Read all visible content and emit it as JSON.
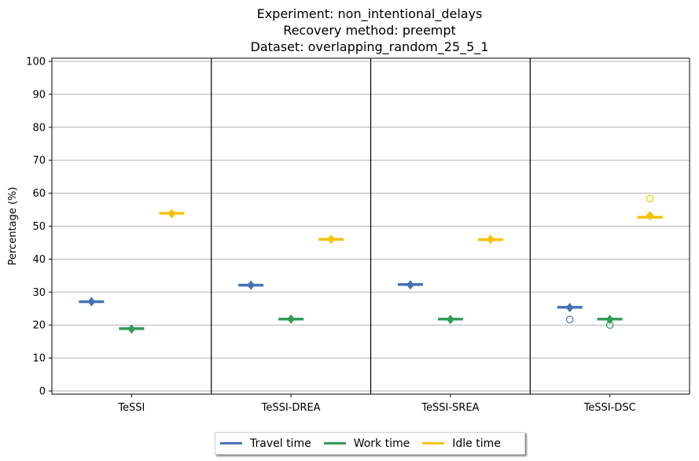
{
  "chart_data": {
    "type": "scatter",
    "title_lines": [
      "Experiment: non_intentional_delays",
      "Recovery method: preempt",
      "Dataset: overlapping_random_25_5_1"
    ],
    "xlabel": "",
    "ylabel": "Percentage (%)",
    "ylim": [
      0,
      100
    ],
    "yticks": [
      0,
      10,
      20,
      30,
      40,
      50,
      60,
      70,
      80,
      90,
      100
    ],
    "grid": "horizontal",
    "legend_position": "bottom-center",
    "categories": [
      "TeSSI",
      "TeSSI-DREA",
      "TeSSI-SREA",
      "TeSSI-DSC"
    ],
    "series": [
      {
        "name": "Travel time",
        "color": "#4472b4",
        "medians": [
          27.1,
          32.1,
          32.3,
          25.4
        ],
        "means": [
          27.1,
          32.1,
          32.2,
          25.3
        ],
        "outliers": [
          [],
          [],
          [],
          [
            21.7
          ]
        ]
      },
      {
        "name": "Work time",
        "color": "#339a5a",
        "medians": [
          18.9,
          21.8,
          21.8,
          21.8
        ],
        "means": [
          18.8,
          21.8,
          21.7,
          21.7
        ],
        "outliers": [
          [],
          [],
          [],
          [
            20.0
          ]
        ]
      },
      {
        "name": "Idle time",
        "color": "#f6c200",
        "medians": [
          53.9,
          46.0,
          45.9,
          52.7
        ],
        "means": [
          53.8,
          46.0,
          46.0,
          53.2
        ],
        "outliers": [
          [],
          [],
          [],
          [
            58.4
          ]
        ]
      }
    ]
  }
}
